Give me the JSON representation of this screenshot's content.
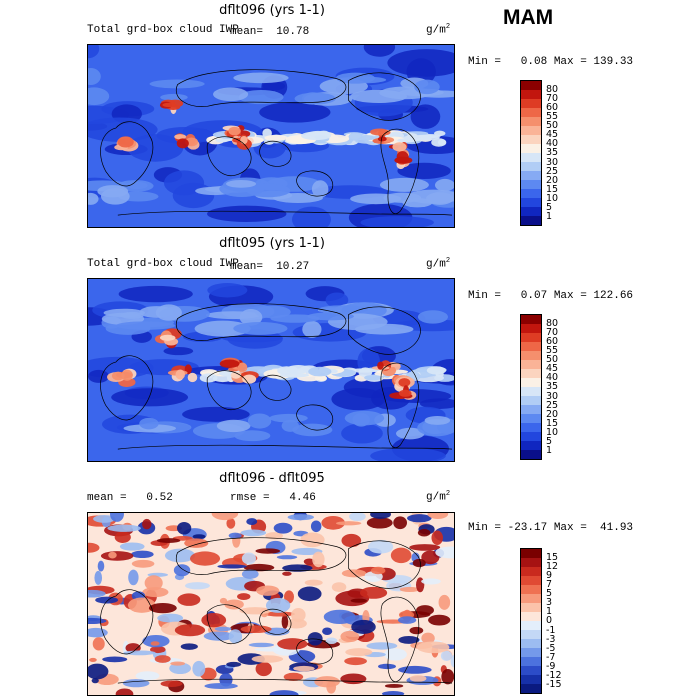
{
  "season": "MAM",
  "panels": [
    {
      "title": "dflt096 (yrs 1-1)",
      "left_label": "Total grd-box cloud IWP",
      "mean_text": "mean=  10.78",
      "unit": "g/m",
      "unit_exp": "2",
      "minmax": "Min =   0.08 Max = 139.33",
      "levels": [
        "80",
        "70",
        "60",
        "55",
        "50",
        "45",
        "40",
        "35",
        "30",
        "25",
        "20",
        "15",
        "10",
        "5",
        "1"
      ],
      "colors": [
        "#8b0000",
        "#c2160e",
        "#de3c24",
        "#ee6747",
        "#f58f6d",
        "#fab397",
        "#fbd4bf",
        "#fbf1e6",
        "#d7e6f7",
        "#b1cdf5",
        "#86aaf3",
        "#5d89f1",
        "#3b66ec",
        "#2246de",
        "#1026c0",
        "#0a0f8a"
      ],
      "map_style": "ice"
    },
    {
      "title": "dflt095 (yrs 1-1)",
      "left_label": "Total grd-box cloud IWP",
      "mean_text": "mean=  10.27",
      "unit": "g/m",
      "unit_exp": "2",
      "minmax": "Min =   0.07 Max = 122.66",
      "levels": [
        "80",
        "70",
        "60",
        "55",
        "50",
        "45",
        "40",
        "35",
        "30",
        "25",
        "20",
        "15",
        "10",
        "5",
        "1"
      ],
      "colors": [
        "#8b0000",
        "#c2160e",
        "#de3c24",
        "#ee6747",
        "#f58f6d",
        "#fab397",
        "#fbd4bf",
        "#fbf1e6",
        "#d7e6f7",
        "#b1cdf5",
        "#86aaf3",
        "#5d89f1",
        "#3b66ec",
        "#2246de",
        "#1026c0",
        "#0a0f8a"
      ],
      "map_style": "ice"
    },
    {
      "title": "dflt096 - dflt095",
      "left_label": "mean =   0.52",
      "mean_text": "rmse =   4.46",
      "unit": "g/m",
      "unit_exp": "2",
      "minmax": "Min = -23.17 Max =  41.93",
      "levels": [
        "15",
        "12",
        "9",
        "7",
        "5",
        "3",
        "1",
        "0",
        "-1",
        "-3",
        "-5",
        "-7",
        "-9",
        "-12",
        "-15"
      ],
      "colors": [
        "#7a0000",
        "#a61212",
        "#c92a1e",
        "#e04a33",
        "#ef7152",
        "#f79a7c",
        "#fbc3aa",
        "#fde6da",
        "#e3eefb",
        "#c3d8f6",
        "#9cbcf1",
        "#7499ea",
        "#4c72de",
        "#2c4cc8",
        "#1630a8",
        "#0a1a80"
      ],
      "map_style": "diff"
    }
  ]
}
